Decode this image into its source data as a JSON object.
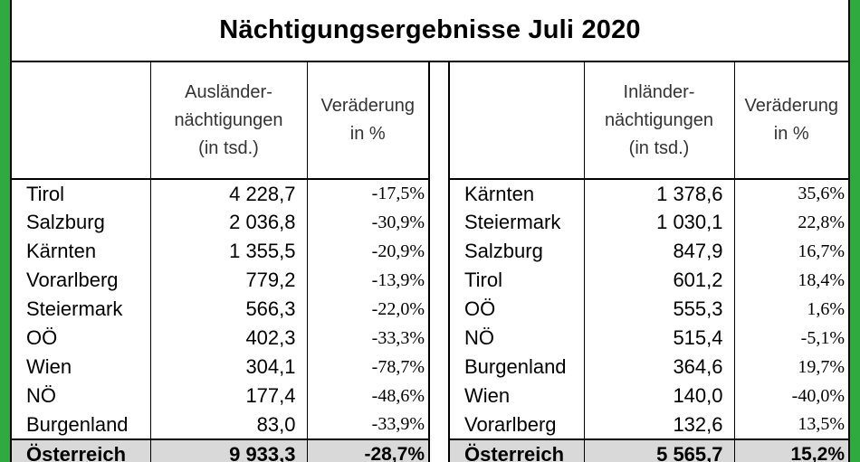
{
  "title": "Nächtigungsergebnisse Juli 2020",
  "left_table": {
    "headers": {
      "name": "",
      "value": "Ausländer-nächtigungen (in tsd.)",
      "change": "Veräderung in %"
    },
    "header_lines": {
      "value": [
        "Ausländer-",
        "nächtigungen",
        "(in tsd.)"
      ],
      "change": [
        "Veräderung",
        "in %"
      ]
    },
    "rows": [
      {
        "name": "Tirol",
        "value": "4 228,7",
        "change": "-17,5%"
      },
      {
        "name": "Salzburg",
        "value": "2 036,8",
        "change": "-30,9%"
      },
      {
        "name": "Kärnten",
        "value": "1 355,5",
        "change": "-20,9%"
      },
      {
        "name": "Vorarlberg",
        "value": "779,2",
        "change": "-13,9%"
      },
      {
        "name": "Steiermark",
        "value": "566,3",
        "change": "-22,0%"
      },
      {
        "name": "OÖ",
        "value": "402,3",
        "change": "-33,3%"
      },
      {
        "name": "Wien",
        "value": "304,1",
        "change": "-78,7%"
      },
      {
        "name": "NÖ",
        "value": "177,4",
        "change": "-48,6%"
      },
      {
        "name": "Burgenland",
        "value": "83,0",
        "change": "-33,9%"
      }
    ],
    "total": {
      "name": "Österreich",
      "value": "9 933,3",
      "change": "-28,7%"
    }
  },
  "right_table": {
    "headers": {
      "name": "",
      "value": "Inländer-nächtigungen (in tsd.)",
      "change": "Veräderung in %"
    },
    "header_lines": {
      "value": [
        "Inländer-",
        "nächtigungen",
        "(in tsd.)"
      ],
      "change": [
        "Veräderung",
        "in %"
      ]
    },
    "rows": [
      {
        "name": "Kärnten",
        "value": "1 378,6",
        "change": "35,6%"
      },
      {
        "name": "Steiermark",
        "value": "1 030,1",
        "change": "22,8%"
      },
      {
        "name": "Salzburg",
        "value": "847,9",
        "change": "16,7%"
      },
      {
        "name": "Tirol",
        "value": "601,2",
        "change": "18,4%"
      },
      {
        "name": "OÖ",
        "value": "555,3",
        "change": "1,6%"
      },
      {
        "name": "NÖ",
        "value": "515,4",
        "change": "-5,1%"
      },
      {
        "name": "Burgenland",
        "value": "364,6",
        "change": "19,7%"
      },
      {
        "name": "Wien",
        "value": "140,0",
        "change": "-40,0%"
      },
      {
        "name": "Vorarlberg",
        "value": "132,6",
        "change": "13,5%"
      }
    ],
    "total": {
      "name": "Österreich",
      "value": "5 565,7",
      "change": "15,2%"
    }
  },
  "colors": {
    "border_green": "#2eaa3e",
    "total_row_bg": "#d9d9d9"
  }
}
